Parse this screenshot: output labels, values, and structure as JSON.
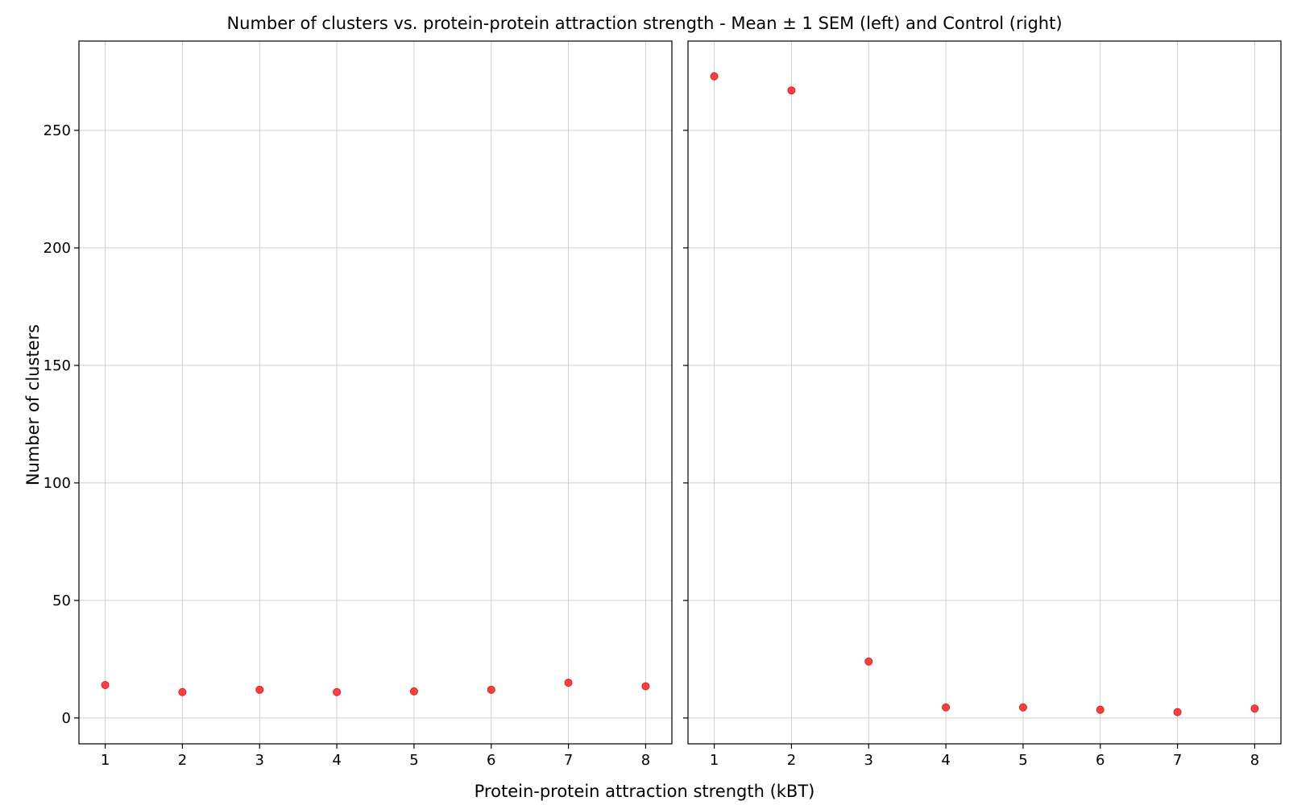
{
  "figure": {
    "title": "Number of clusters vs. protein-protein attraction strength - Mean ± 1 SEM (left) and Control (right)",
    "xlabel": "Protein-protein attraction strength (kBT)",
    "ylabel": "Number of clusters"
  },
  "chart_data": [
    {
      "type": "scatter",
      "name": "Mean ± 1 SEM",
      "title": "",
      "x": [
        1,
        2,
        3,
        4,
        5,
        6,
        7,
        8
      ],
      "y": [
        14,
        11,
        12,
        11,
        11.3,
        12,
        15,
        13.5
      ],
      "xlim": [
        0.66,
        8.34
      ],
      "ylim": [
        -11,
        288
      ],
      "xticks": [
        "1",
        "2",
        "3",
        "4",
        "5",
        "6",
        "7",
        "8"
      ],
      "yticks": [
        0,
        50,
        100,
        150,
        200,
        250
      ],
      "ytick_labels": [
        "0",
        "50",
        "100",
        "150",
        "200",
        "250"
      ],
      "grid": true,
      "marker_color": "#ff2020"
    },
    {
      "type": "scatter",
      "name": "Control",
      "title": "",
      "x": [
        1,
        2,
        3,
        4,
        5,
        6,
        7,
        8
      ],
      "y": [
        273,
        267,
        24,
        4.5,
        4.5,
        3.5,
        2.5,
        4
      ],
      "xlim": [
        0.66,
        8.34
      ],
      "ylim": [
        -11,
        288
      ],
      "xticks": [
        "1",
        "2",
        "3",
        "4",
        "5",
        "6",
        "7",
        "8"
      ],
      "yticks": [
        0,
        50,
        100,
        150,
        200,
        250
      ],
      "ytick_labels": [],
      "grid": true,
      "marker_color": "#ff2020"
    }
  ]
}
